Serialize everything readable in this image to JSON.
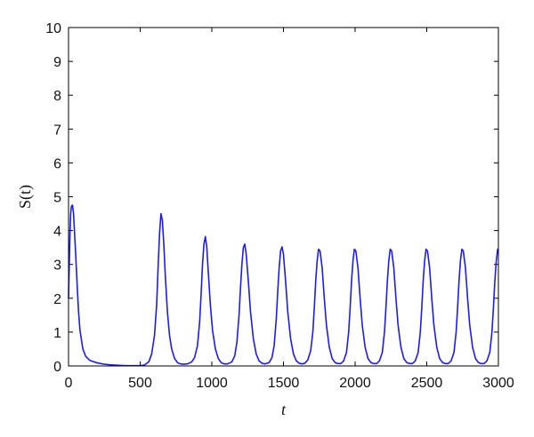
{
  "chart_data": {
    "type": "line",
    "title": "",
    "xlabel": "t",
    "ylabel": "S(t)",
    "xlim": [
      0,
      3000
    ],
    "ylim": [
      0,
      10
    ],
    "xticks": [
      0,
      500,
      1000,
      1500,
      2000,
      2500,
      3000
    ],
    "yticks": [
      0,
      1,
      2,
      3,
      4,
      5,
      6,
      7,
      8,
      9,
      10
    ],
    "grid": false,
    "line_color": "#1a1aff",
    "series": [
      {
        "x": [
          0,
          5,
          10,
          15,
          20,
          28,
          35,
          40,
          50,
          60,
          70,
          80,
          100,
          120,
          150,
          200,
          250,
          300,
          350,
          400,
          450,
          500,
          530,
          560,
          580,
          600,
          615,
          625,
          635,
          645,
          655,
          665,
          675,
          690,
          705,
          720,
          740,
          760,
          780,
          800,
          830,
          860,
          880,
          900,
          915,
          925,
          935,
          945,
          955,
          965,
          975,
          990,
          1005,
          1025,
          1045,
          1065,
          1085,
          1110,
          1140,
          1160,
          1175,
          1190,
          1200,
          1210,
          1220,
          1230,
          1240,
          1255,
          1270,
          1290,
          1310,
          1330,
          1350,
          1370,
          1400,
          1420,
          1435,
          1450,
          1460,
          1470,
          1480,
          1490,
          1500,
          1515,
          1530,
          1550,
          1570,
          1590,
          1610,
          1630,
          1650,
          1670,
          1690,
          1705,
          1715,
          1725,
          1735,
          1745,
          1755,
          1770,
          1785,
          1800,
          1820,
          1840,
          1860,
          1880,
          1900,
          1920,
          1940,
          1955,
          1965,
          1975,
          1985,
          1995,
          2005,
          2020,
          2035,
          2050,
          2070,
          2090,
          2110,
          2130,
          2150,
          2170,
          2190,
          2205,
          2215,
          2225,
          2235,
          2245,
          2255,
          2270,
          2285,
          2300,
          2320,
          2340,
          2360,
          2380,
          2400,
          2420,
          2440,
          2455,
          2465,
          2475,
          2485,
          2495,
          2505,
          2520,
          2535,
          2550,
          2570,
          2590,
          2610,
          2630,
          2650,
          2670,
          2690,
          2705,
          2715,
          2725,
          2735,
          2745,
          2755,
          2770,
          2785,
          2800,
          2820,
          2840,
          2860,
          2880,
          2900,
          2920,
          2940,
          2955,
          2965,
          2975,
          2985,
          2995,
          3000
        ],
        "y": [
          2.0,
          3.0,
          3.9,
          4.5,
          4.72,
          4.75,
          4.5,
          4.1,
          3.3,
          2.4,
          1.6,
          1.05,
          0.5,
          0.28,
          0.16,
          0.09,
          0.05,
          0.03,
          0.02,
          0.01,
          0.01,
          0.01,
          0.03,
          0.12,
          0.35,
          0.9,
          1.8,
          2.9,
          3.9,
          4.5,
          4.3,
          3.6,
          2.7,
          1.6,
          0.9,
          0.5,
          0.22,
          0.1,
          0.06,
          0.05,
          0.06,
          0.12,
          0.25,
          0.6,
          1.3,
          2.1,
          3.0,
          3.6,
          3.82,
          3.5,
          2.8,
          1.8,
          1.05,
          0.5,
          0.22,
          0.1,
          0.06,
          0.06,
          0.12,
          0.3,
          0.7,
          1.5,
          2.3,
          3.0,
          3.5,
          3.6,
          3.3,
          2.5,
          1.6,
          0.8,
          0.35,
          0.15,
          0.08,
          0.06,
          0.1,
          0.25,
          0.6,
          1.4,
          2.2,
          2.9,
          3.4,
          3.52,
          3.3,
          2.5,
          1.6,
          0.8,
          0.35,
          0.15,
          0.08,
          0.06,
          0.08,
          0.18,
          0.45,
          1.0,
          1.7,
          2.5,
          3.1,
          3.45,
          3.4,
          2.9,
          2.0,
          1.2,
          0.55,
          0.22,
          0.1,
          0.07,
          0.07,
          0.15,
          0.4,
          1.0,
          1.7,
          2.5,
          3.1,
          3.45,
          3.4,
          2.9,
          2.0,
          1.2,
          0.55,
          0.22,
          0.1,
          0.07,
          0.07,
          0.15,
          0.4,
          1.0,
          1.7,
          2.5,
          3.1,
          3.45,
          3.4,
          2.9,
          2.0,
          1.2,
          0.55,
          0.22,
          0.1,
          0.07,
          0.07,
          0.15,
          0.4,
          1.0,
          1.7,
          2.5,
          3.1,
          3.45,
          3.4,
          2.9,
          2.0,
          1.2,
          0.55,
          0.22,
          0.1,
          0.07,
          0.07,
          0.15,
          0.4,
          1.0,
          1.7,
          2.5,
          3.1,
          3.45,
          3.4,
          2.9,
          2.0,
          1.2,
          0.55,
          0.22,
          0.1,
          0.07,
          0.07,
          0.15,
          0.4,
          1.0,
          1.7,
          2.5,
          3.1,
          3.45,
          3.45
        ]
      }
    ]
  }
}
